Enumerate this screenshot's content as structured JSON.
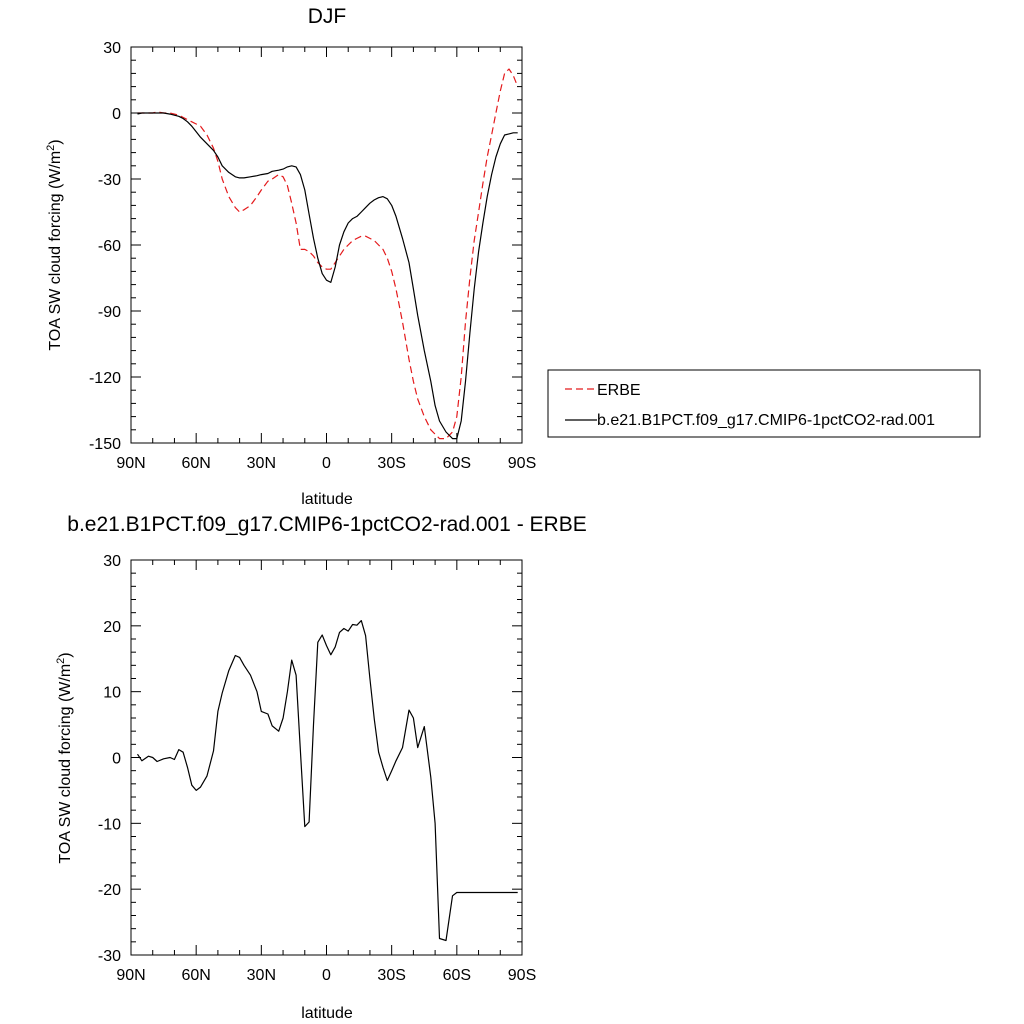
{
  "chart_data": [
    {
      "type": "line",
      "title": "DJF",
      "xlabel": "latitude",
      "ylabel": "TOA SW cloud forcing (W/m",
      "ylabel_sup": "2",
      "ylabel_close": ")",
      "xlim": [
        90,
        -90
      ],
      "ylim": [
        -150,
        30
      ],
      "xticks": [
        90,
        60,
        30,
        0,
        -30,
        -60,
        -90
      ],
      "xtick_labels": [
        "90N",
        "60N",
        "30N",
        "0",
        "30S",
        "60S",
        "90S"
      ],
      "yticks": [
        30,
        0,
        -30,
        -60,
        -90,
        -120,
        -150
      ],
      "ytick_labels": [
        "30",
        "0",
        "-30",
        "-60",
        "-90",
        "-120",
        "-150"
      ],
      "grid": false,
      "legend": "right",
      "series": [
        {
          "name": "ERBE",
          "color": "#e41a1c",
          "dash": "dashed",
          "x": [
            87,
            85,
            82,
            80,
            78,
            75,
            72,
            70,
            68,
            66,
            64,
            62,
            60,
            58,
            55,
            52,
            50,
            48,
            45,
            42,
            40,
            38,
            35,
            32,
            30,
            27,
            25,
            22,
            20,
            18,
            16,
            14,
            12,
            10,
            8,
            6,
            4,
            2,
            0,
            -2,
            -4,
            -6,
            -8,
            -10,
            -12,
            -14,
            -16,
            -18,
            -20,
            -22,
            -24,
            -26,
            -28,
            -30,
            -32,
            -35,
            -38,
            -40,
            -42,
            -45,
            -48,
            -50,
            -52,
            -55,
            -58,
            -60,
            -62,
            -64,
            -66,
            -68,
            -70,
            -72,
            -74,
            -76,
            -78,
            -80,
            -82,
            -84,
            -86,
            -88
          ],
          "y": [
            0,
            0,
            0,
            0,
            0.5,
            0,
            0,
            -0.5,
            -1,
            -2,
            -3,
            -4,
            -5,
            -6,
            -10,
            -16,
            -22,
            -30,
            -38,
            -43,
            -45,
            -44,
            -42,
            -38,
            -35,
            -31,
            -30,
            -28,
            -29,
            -33,
            -41,
            -50,
            -62,
            -62,
            -63,
            -65,
            -68,
            -70,
            -71,
            -71,
            -68,
            -65,
            -62,
            -60,
            -58,
            -57,
            -56,
            -56,
            -57,
            -58,
            -60,
            -62,
            -66,
            -72,
            -80,
            -95,
            -112,
            -122,
            -130,
            -138,
            -144,
            -146,
            -148,
            -148,
            -145,
            -138,
            -120,
            -95,
            -75,
            -58,
            -45,
            -32,
            -20,
            -10,
            0,
            10,
            18,
            20,
            17,
            12
          ]
        },
        {
          "name": "b.e21.B1PCT.f09_g17.CMIP6-1pctCO2-rad.001",
          "color": "#000000",
          "dash": "solid",
          "x": [
            87,
            85,
            82,
            80,
            78,
            75,
            72,
            70,
            68,
            66,
            64,
            62,
            60,
            58,
            55,
            52,
            50,
            48,
            45,
            42,
            40,
            38,
            35,
            32,
            30,
            27,
            25,
            22,
            20,
            18,
            16,
            14,
            12,
            10,
            8,
            6,
            4,
            2,
            0,
            -2,
            -4,
            -6,
            -8,
            -10,
            -12,
            -14,
            -16,
            -18,
            -20,
            -22,
            -24,
            -26,
            -28,
            -30,
            -32,
            -35,
            -38,
            -40,
            -42,
            -45,
            -48,
            -50,
            -52,
            -55,
            -58,
            -60,
            -62,
            -64,
            -66,
            -68,
            -70,
            -72,
            -74,
            -76,
            -78,
            -80,
            -82,
            -84,
            -86,
            -88
          ],
          "y": [
            -0.5,
            0,
            0,
            0,
            0,
            0,
            -0.5,
            -1,
            -1.5,
            -2.5,
            -4,
            -6,
            -8.5,
            -11,
            -14,
            -17,
            -20,
            -24,
            -27,
            -29,
            -29.5,
            -29.5,
            -29,
            -28.5,
            -28,
            -27.5,
            -26.5,
            -26,
            -25.5,
            -24.5,
            -24,
            -24.5,
            -28,
            -35,
            -46,
            -57,
            -66,
            -73,
            -76,
            -77,
            -70,
            -60,
            -54,
            -50,
            -48,
            -47,
            -45,
            -43,
            -41,
            -39.5,
            -38.5,
            -38,
            -39,
            -42,
            -47,
            -57,
            -68,
            -80,
            -92,
            -108,
            -122,
            -133,
            -140,
            -145,
            -148,
            -148,
            -140,
            -122,
            -100,
            -80,
            -63,
            -50,
            -38,
            -28,
            -20,
            -14,
            -10,
            -9.5,
            -9,
            -9
          ]
        }
      ]
    },
    {
      "type": "line",
      "title": "b.e21.B1PCT.f09_g17.CMIP6-1pctCO2-rad.001 - ERBE",
      "xlabel": "latitude",
      "ylabel": "TOA SW cloud forcing (W/m",
      "ylabel_sup": "2",
      "ylabel_close": ")",
      "xlim": [
        90,
        -90
      ],
      "ylim": [
        -30,
        30
      ],
      "xticks": [
        90,
        60,
        30,
        0,
        -30,
        -60,
        -90
      ],
      "xtick_labels": [
        "90N",
        "60N",
        "30N",
        "0",
        "30S",
        "60S",
        "90S"
      ],
      "yticks": [
        30,
        20,
        10,
        0,
        -10,
        -20,
        -30
      ],
      "ytick_labels": [
        "30",
        "20",
        "10",
        "0",
        "-10",
        "-20",
        "-30"
      ],
      "grid": false,
      "legend": "none",
      "series": [
        {
          "color": "#000000",
          "dash": "solid",
          "x": [
            87,
            85,
            82,
            80,
            78,
            75,
            72,
            70,
            68,
            66,
            64,
            62,
            60,
            58,
            55,
            52,
            50,
            48,
            45,
            42,
            40,
            38,
            35,
            32,
            30,
            27,
            25,
            22,
            20,
            18,
            16,
            14,
            12,
            10,
            8,
            6,
            4,
            2,
            0,
            -2,
            -4,
            -6,
            -8,
            -10,
            -12,
            -14,
            -16,
            -18,
            -20,
            -22,
            -24,
            -26,
            -28,
            -30,
            -32,
            -35,
            -38,
            -40,
            -42,
            -45,
            -48,
            -50,
            -52,
            -55,
            -58,
            -60,
            -62,
            -64,
            -66,
            -68,
            -70,
            -72,
            -74,
            -76,
            -78,
            -80,
            -82,
            -84,
            -86,
            -88
          ],
          "y": [
            0.5,
            -0.5,
            0.2,
            0,
            -0.6,
            -0.2,
            0,
            -0.3,
            1.2,
            0.8,
            -1.5,
            -4.2,
            -5,
            -4.5,
            -2.8,
            1,
            7,
            9.8,
            13.2,
            15.5,
            15.2,
            14,
            12.5,
            10,
            7,
            6.6,
            4.8,
            4,
            6,
            10,
            14.8,
            12.5,
            1,
            -10.5,
            -9.8,
            5,
            17.5,
            18.6,
            17,
            15.6,
            16.8,
            19,
            19.6,
            19.2,
            20.2,
            20.1,
            20.8,
            18.5,
            12,
            5.8,
            0.8,
            -1.5,
            -3.5,
            -2,
            -0.5,
            1.5,
            7.2,
            6,
            1.5,
            4.7,
            -3,
            -10,
            -27.5,
            -27.8,
            -21,
            -20.5,
            -20.5,
            -20.5,
            -20.5,
            -20.5,
            -20.5,
            -20.5,
            -20.5,
            -20.5,
            -20.5,
            -20.5,
            -20.5,
            -20.5,
            -20.5,
            -20.5
          ]
        }
      ]
    }
  ],
  "legend_entries": [
    "ERBE",
    "b.e21.B1PCT.f09_g17.CMIP6-1pctCO2-rad.001"
  ]
}
